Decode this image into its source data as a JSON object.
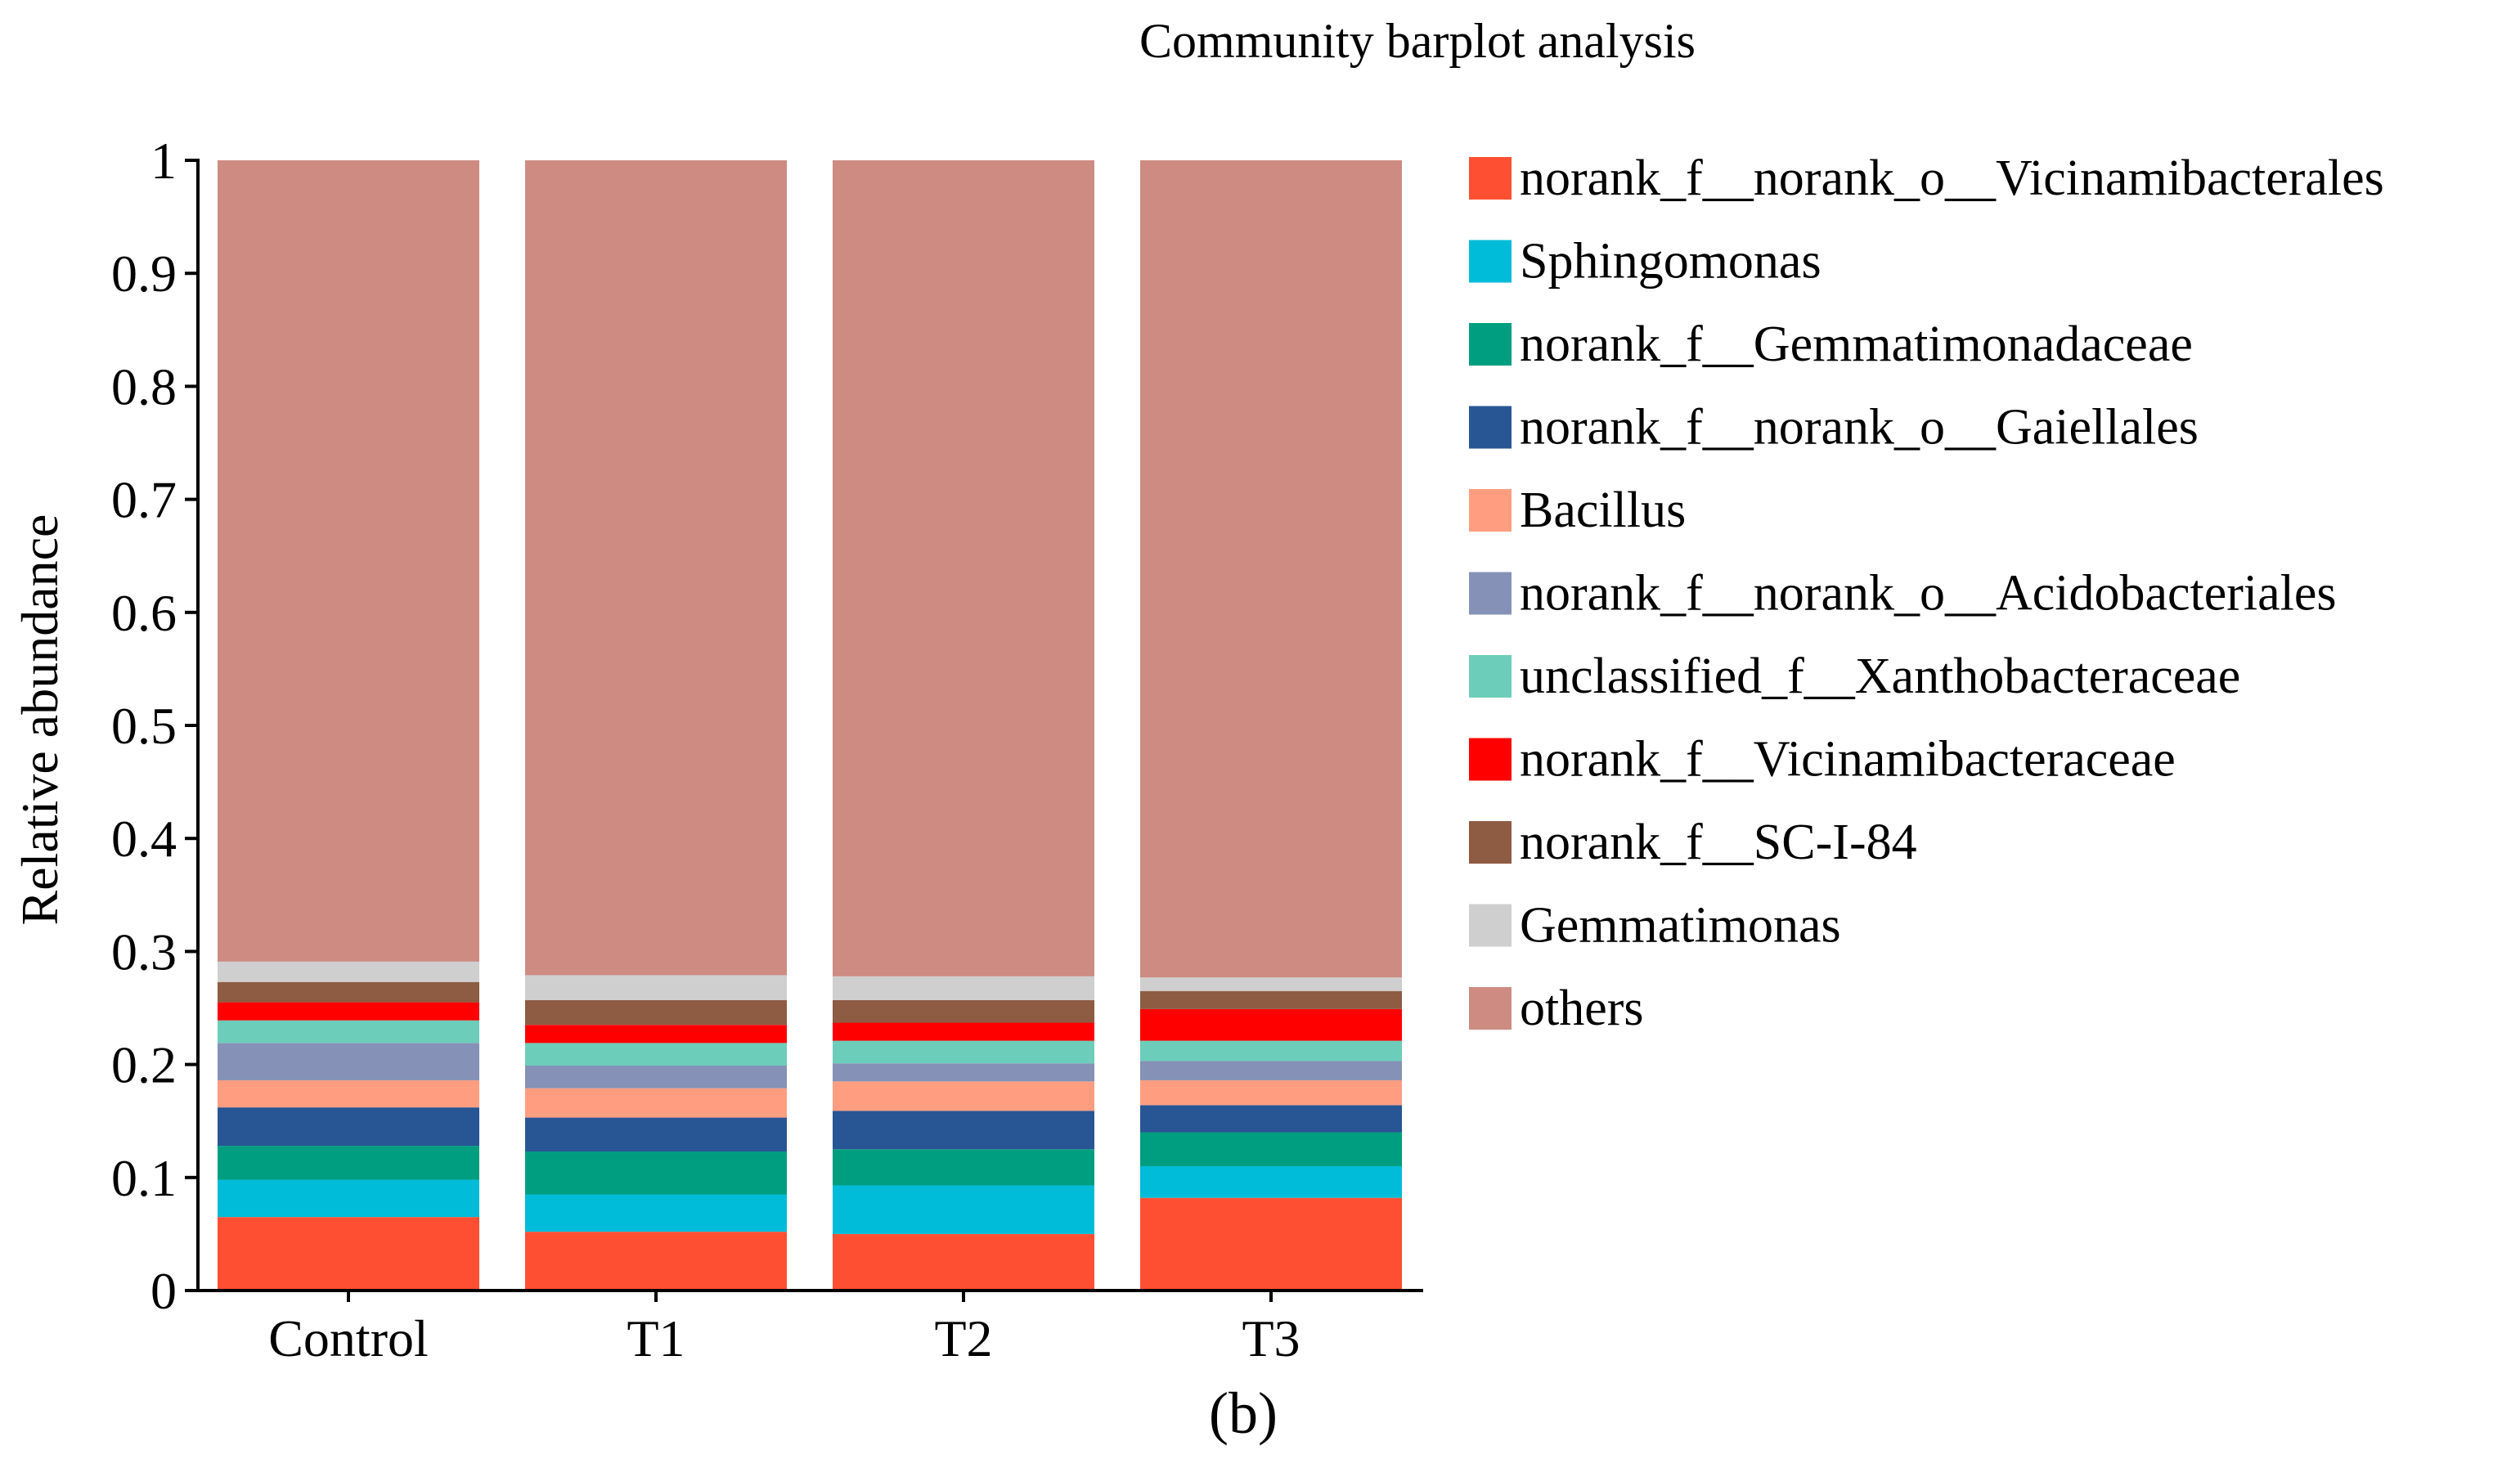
{
  "chart_data": {
    "type": "bar",
    "stacked": true,
    "title": "Community barplot analysis",
    "xlabel": "",
    "ylabel": "Relative abundance",
    "ylim": [
      0,
      1
    ],
    "yticks": [
      "0",
      "0.1",
      "0.2",
      "0.3",
      "0.4",
      "0.5",
      "0.6",
      "0.7",
      "0.8",
      "0.9",
      "1"
    ],
    "ytick_values": [
      0,
      0.1,
      0.2,
      0.3,
      0.4,
      0.5,
      0.6,
      0.7,
      0.8,
      0.9,
      1
    ],
    "categories": [
      "Control",
      "T1",
      "T2",
      "T3"
    ],
    "legend_position": "right",
    "grid": false,
    "panel_label": "(b)",
    "series": [
      {
        "name": "norank_f__norank_o__Vicinamibacterales",
        "color": "#ff4f33",
        "values": [
          0.065,
          0.052,
          0.05,
          0.082
        ]
      },
      {
        "name": "Sphingomonas",
        "color": "#00bcd8",
        "values": [
          0.033,
          0.033,
          0.043,
          0.028
        ]
      },
      {
        "name": "norank_f__Gemmatimonadaceae",
        "color": "#009e80",
        "values": [
          0.03,
          0.038,
          0.032,
          0.03
        ]
      },
      {
        "name": "norank_f__norank_o__Gaiellales",
        "color": "#285594",
        "values": [
          0.034,
          0.03,
          0.034,
          0.024
        ]
      },
      {
        "name": "Bacillus",
        "color": "#ff9d81",
        "values": [
          0.024,
          0.026,
          0.026,
          0.022
        ]
      },
      {
        "name": "norank_f__norank_o__Acidobacteriales",
        "color": "#8591b6",
        "values": [
          0.033,
          0.02,
          0.016,
          0.017
        ]
      },
      {
        "name": "unclassified_f__Xanthobacteraceae",
        "color": "#6ccdba",
        "values": [
          0.02,
          0.02,
          0.02,
          0.018
        ]
      },
      {
        "name": "norank_f__Vicinamibacteraceae",
        "color": "#ff0000",
        "values": [
          0.016,
          0.016,
          0.016,
          0.028
        ]
      },
      {
        "name": "norank_f__SC-I-84",
        "color": "#8e5b43",
        "values": [
          0.018,
          0.022,
          0.02,
          0.016
        ]
      },
      {
        "name": "Gemmatimonas",
        "color": "#cfcfcf",
        "values": [
          0.018,
          0.022,
          0.021,
          0.012
        ]
      },
      {
        "name": "others",
        "color": "#cd8b82",
        "values": [
          0.709,
          0.721,
          0.722,
          0.723
        ]
      }
    ]
  }
}
